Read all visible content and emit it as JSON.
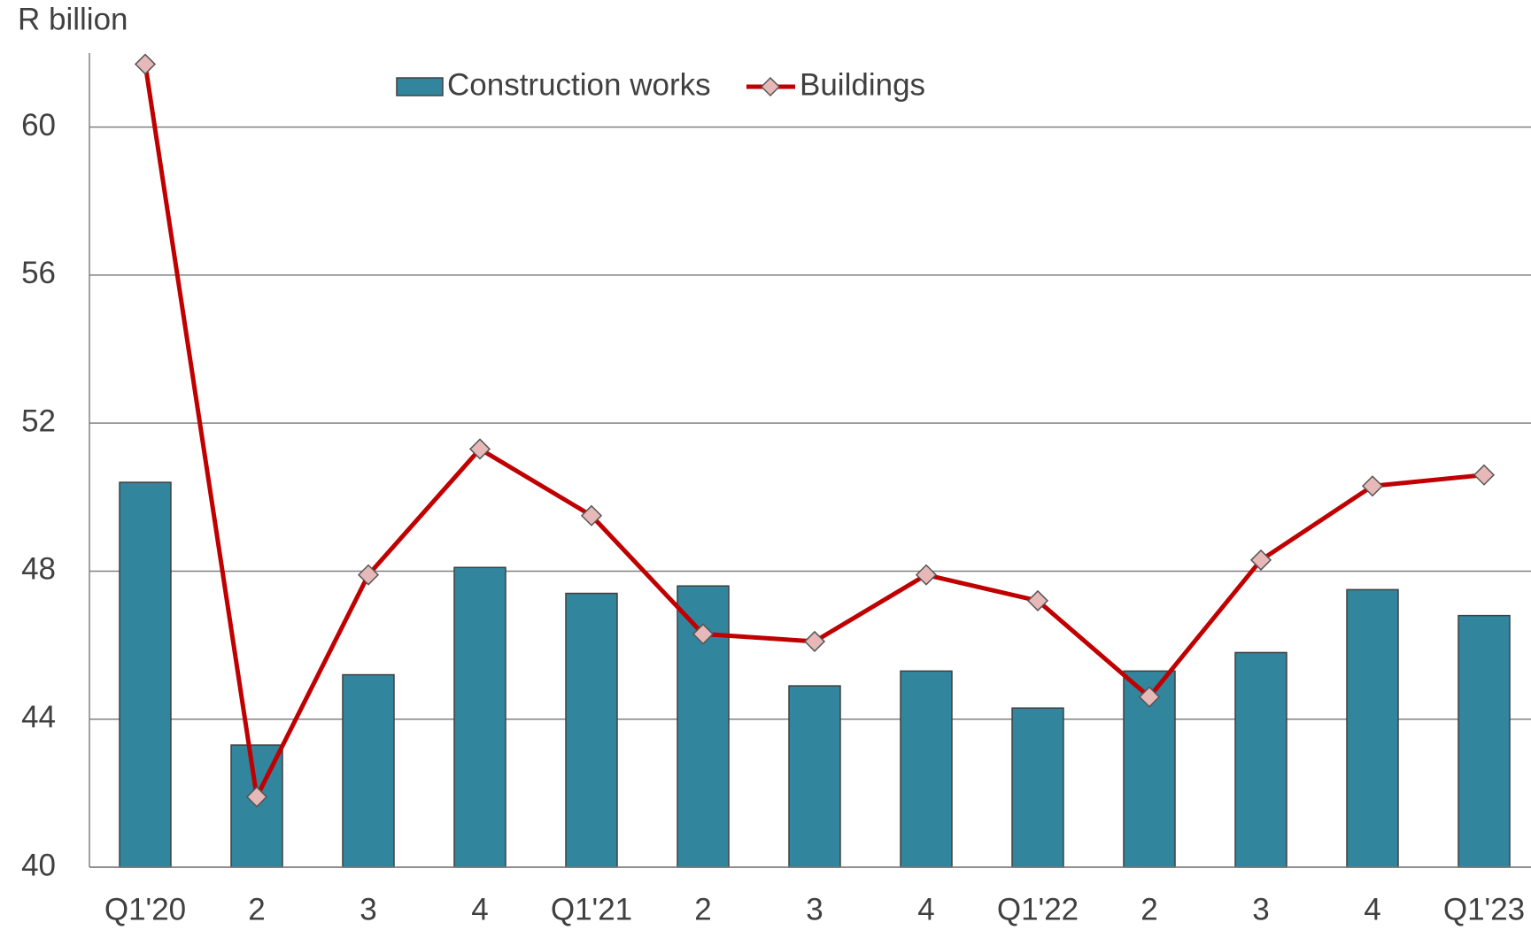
{
  "chart_data": {
    "type": "bar-line",
    "y_label": "R billion",
    "categories": [
      "Q1'20",
      "2",
      "3",
      "4",
      "Q1'21",
      "2",
      "3",
      "4",
      "Q1'22",
      "2",
      "3",
      "4",
      "Q1'23"
    ],
    "series": [
      {
        "name": "Construction works",
        "type": "bar",
        "color": "#31859c",
        "values": [
          50.4,
          43.3,
          45.2,
          48.1,
          47.4,
          47.6,
          44.9,
          45.3,
          44.3,
          45.3,
          45.8,
          47.5,
          46.8
        ]
      },
      {
        "name": "Buildings",
        "type": "line",
        "color": "#c00000",
        "marker_color": "#e6b9b8",
        "values": [
          61.7,
          41.9,
          47.9,
          51.3,
          49.5,
          46.3,
          46.1,
          47.9,
          47.2,
          44.6,
          48.3,
          50.3,
          50.6
        ]
      }
    ],
    "ylim": [
      40,
      62
    ],
    "yticks": [
      40,
      44,
      48,
      52,
      56,
      60
    ],
    "grid": true
  }
}
